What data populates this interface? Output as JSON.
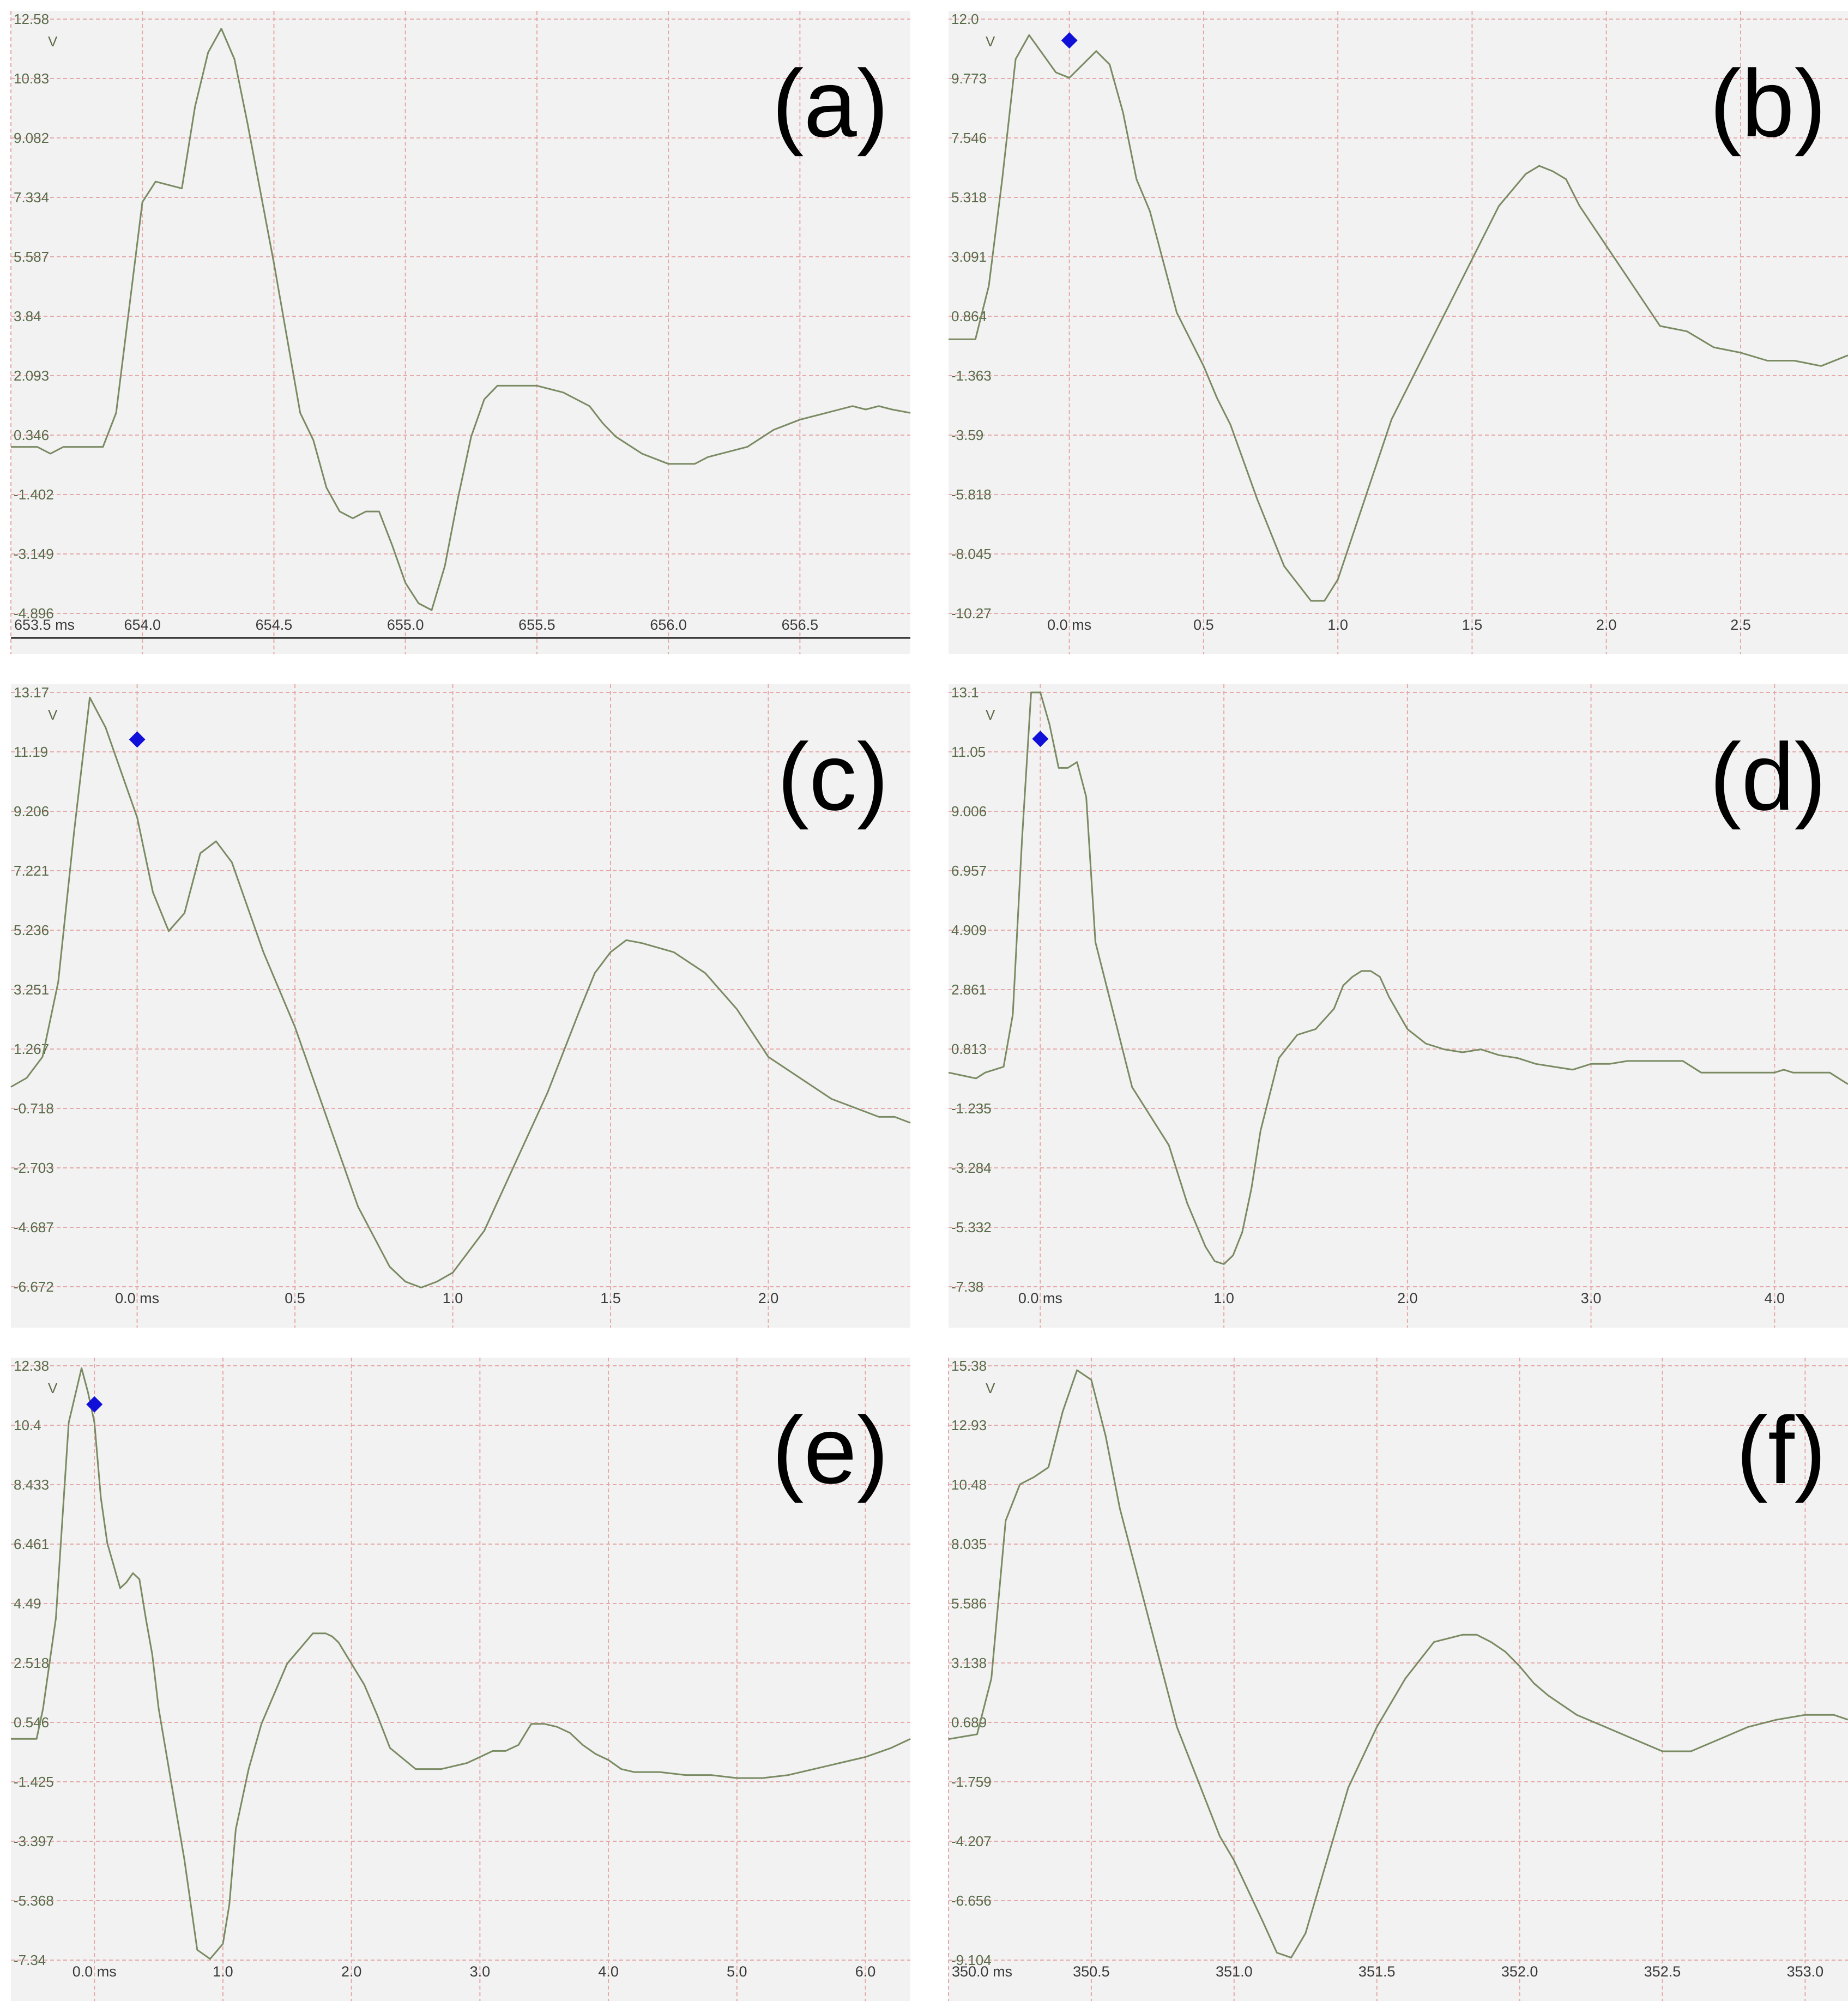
{
  "colors": {
    "plot_bg": "#f2f2f2",
    "grid": "#e6a8a8",
    "trace": "#7a8a62",
    "tick_text": "#5a6a48",
    "marker": "#1010d8"
  },
  "chart_data": [
    {
      "type": "line",
      "panel_label": "(a)",
      "unit_label": "V",
      "y_ticks": [
        "12.58",
        "10.83",
        "9.082",
        "7.334",
        "5.587",
        "3.84",
        "2.093",
        "0.346",
        "-1.402",
        "-3.149",
        "-4.896"
      ],
      "ylim": [
        -4.896,
        12.58
      ],
      "x_ticks": [
        {
          "value": 653.5,
          "label": "653.5 ms"
        },
        {
          "value": 654.0,
          "label": "654.0"
        },
        {
          "value": 654.5,
          "label": "654.5"
        },
        {
          "value": 655.0,
          "label": "655.0"
        },
        {
          "value": 655.5,
          "label": "655.5"
        },
        {
          "value": 656.0,
          "label": "656.0"
        },
        {
          "value": 656.5,
          "label": "656.5"
        }
      ],
      "xlim": [
        653.5,
        656.92
      ],
      "bottom_axis_line": true,
      "marker": null,
      "x": [
        653.5,
        653.6,
        653.65,
        653.7,
        653.8,
        653.85,
        653.9,
        654.0,
        654.05,
        654.15,
        654.2,
        654.25,
        654.3,
        654.35,
        654.4,
        654.5,
        654.6,
        654.65,
        654.7,
        654.75,
        654.8,
        654.85,
        654.9,
        654.95,
        655.0,
        655.05,
        655.1,
        655.15,
        655.2,
        655.25,
        655.3,
        655.35,
        655.4,
        655.5,
        655.6,
        655.7,
        655.75,
        655.8,
        655.9,
        656.0,
        656.1,
        656.15,
        656.2,
        656.3,
        656.4,
        656.5,
        656.6,
        656.7,
        656.75,
        656.8,
        656.85,
        656.92
      ],
      "y": [
        0.0,
        0.0,
        -0.2,
        0.0,
        0.0,
        0.0,
        1.0,
        7.2,
        7.8,
        7.6,
        10.0,
        11.6,
        12.3,
        11.4,
        9.5,
        5.4,
        1.0,
        0.2,
        -1.2,
        -1.9,
        -2.1,
        -1.9,
        -1.9,
        -2.9,
        -4.0,
        -4.6,
        -4.8,
        -3.5,
        -1.5,
        0.3,
        1.4,
        1.8,
        1.8,
        1.8,
        1.6,
        1.2,
        0.7,
        0.3,
        -0.2,
        -0.5,
        -0.5,
        -0.3,
        -0.2,
        0.0,
        0.5,
        0.8,
        1.0,
        1.2,
        1.1,
        1.2,
        1.1,
        1.0
      ]
    },
    {
      "type": "line",
      "panel_label": "(b)",
      "unit_label": "V",
      "y_ticks": [
        "12.0",
        "9.773",
        "7.546",
        "5.318",
        "3.091",
        "0.864",
        "-1.363",
        "-3.59",
        "-5.818",
        "-8.045",
        "-10.27"
      ],
      "ylim": [
        -10.27,
        12.0
      ],
      "x_ticks": [
        {
          "value": 0.0,
          "label": "0.0 ms"
        },
        {
          "value": 0.5,
          "label": "0.5"
        },
        {
          "value": 1.0,
          "label": "1.0"
        },
        {
          "value": 1.5,
          "label": "1.5"
        },
        {
          "value": 2.0,
          "label": "2.0"
        },
        {
          "value": 2.5,
          "label": "2.5"
        }
      ],
      "xlim": [
        -0.45,
        2.9
      ],
      "bottom_axis_line": false,
      "marker": {
        "x": 0.0,
        "y": 11.2
      },
      "x": [
        -0.45,
        -0.35,
        -0.3,
        -0.25,
        -0.2,
        -0.15,
        -0.1,
        -0.05,
        0.0,
        0.05,
        0.1,
        0.15,
        0.2,
        0.25,
        0.3,
        0.4,
        0.5,
        0.55,
        0.6,
        0.7,
        0.8,
        0.9,
        0.95,
        1.0,
        1.05,
        1.1,
        1.2,
        1.3,
        1.4,
        1.5,
        1.6,
        1.7,
        1.75,
        1.8,
        1.85,
        1.9,
        2.0,
        2.1,
        2.2,
        2.3,
        2.35,
        2.4,
        2.5,
        2.6,
        2.7,
        2.75,
        2.8,
        2.9
      ],
      "y": [
        0.0,
        0.0,
        2.0,
        6.0,
        10.5,
        11.4,
        10.7,
        10.0,
        9.8,
        10.3,
        10.8,
        10.3,
        8.5,
        6.0,
        4.8,
        1.0,
        -1.0,
        -2.2,
        -3.2,
        -6.0,
        -8.5,
        -9.8,
        -9.8,
        -9.0,
        -7.5,
        -6.0,
        -3.0,
        -1.0,
        1.0,
        3.0,
        5.0,
        6.2,
        6.5,
        6.3,
        6.0,
        5.0,
        3.5,
        2.0,
        0.5,
        0.3,
        0.0,
        -0.3,
        -0.5,
        -0.8,
        -0.8,
        -0.9,
        -1.0,
        -0.6
      ]
    },
    {
      "type": "line",
      "panel_label": "(c)",
      "unit_label": "V",
      "y_ticks": [
        "13.17",
        "11.19",
        "9.206",
        "7.221",
        "5.236",
        "3.251",
        "1.267",
        "-0.718",
        "-2.703",
        "-4.687",
        "-6.672"
      ],
      "ylim": [
        -6.672,
        13.17
      ],
      "x_ticks": [
        {
          "value": 0.0,
          "label": "0.0 ms"
        },
        {
          "value": 0.5,
          "label": "0.5"
        },
        {
          "value": 1.0,
          "label": "1.0"
        },
        {
          "value": 1.5,
          "label": "1.5"
        },
        {
          "value": 2.0,
          "label": "2.0"
        }
      ],
      "xlim": [
        -0.4,
        2.45
      ],
      "bottom_axis_line": false,
      "marker": {
        "x": 0.0,
        "y": 11.6
      },
      "x": [
        -0.4,
        -0.35,
        -0.3,
        -0.25,
        -0.2,
        -0.15,
        -0.1,
        -0.05,
        0.0,
        0.05,
        0.1,
        0.15,
        0.2,
        0.25,
        0.3,
        0.35,
        0.4,
        0.5,
        0.6,
        0.7,
        0.8,
        0.85,
        0.9,
        0.95,
        1.0,
        1.1,
        1.2,
        1.3,
        1.4,
        1.45,
        1.5,
        1.55,
        1.6,
        1.7,
        1.8,
        1.9,
        2.0,
        2.1,
        2.2,
        2.3,
        2.35,
        2.4,
        2.45
      ],
      "y": [
        0.0,
        0.3,
        1.0,
        3.5,
        8.5,
        13.0,
        12.0,
        10.5,
        9.0,
        6.5,
        5.2,
        5.8,
        7.8,
        8.2,
        7.5,
        6.0,
        4.5,
        2.0,
        -1.0,
        -4.0,
        -6.0,
        -6.5,
        -6.7,
        -6.5,
        -6.2,
        -4.8,
        -2.5,
        -0.2,
        2.5,
        3.8,
        4.5,
        4.9,
        4.8,
        4.5,
        3.8,
        2.6,
        1.0,
        0.3,
        -0.4,
        -0.8,
        -1.0,
        -1.0,
        -1.2
      ]
    },
    {
      "type": "line",
      "panel_label": "(d)",
      "unit_label": "V",
      "y_ticks": [
        "13.1",
        "11.05",
        "9.006",
        "6.957",
        "4.909",
        "2.861",
        "0.813",
        "-1.235",
        "-3.284",
        "-5.332",
        "-7.38"
      ],
      "ylim": [
        -7.38,
        13.1
      ],
      "x_ticks": [
        {
          "value": 0.0,
          "label": "0.0 ms"
        },
        {
          "value": 1.0,
          "label": "1.0"
        },
        {
          "value": 2.0,
          "label": "2.0"
        },
        {
          "value": 3.0,
          "label": "3.0"
        },
        {
          "value": 4.0,
          "label": "4.0"
        }
      ],
      "xlim": [
        -0.5,
        4.4
      ],
      "bottom_axis_line": false,
      "marker": {
        "x": 0.0,
        "y": 11.5
      },
      "x": [
        -0.5,
        -0.35,
        -0.3,
        -0.2,
        -0.15,
        -0.1,
        -0.05,
        0.0,
        0.05,
        0.1,
        0.15,
        0.2,
        0.25,
        0.3,
        0.4,
        0.5,
        0.6,
        0.7,
        0.8,
        0.9,
        0.95,
        1.0,
        1.05,
        1.1,
        1.15,
        1.2,
        1.3,
        1.4,
        1.45,
        1.5,
        1.6,
        1.65,
        1.7,
        1.75,
        1.8,
        1.85,
        1.9,
        2.0,
        2.1,
        2.2,
        2.3,
        2.4,
        2.5,
        2.6,
        2.7,
        2.8,
        2.9,
        3.0,
        3.1,
        3.2,
        3.3,
        3.5,
        3.6,
        3.8,
        4.0,
        4.05,
        4.1,
        4.3,
        4.4
      ],
      "y": [
        0.0,
        -0.2,
        0.0,
        0.2,
        2.0,
        8.0,
        13.1,
        13.1,
        12.0,
        10.5,
        10.5,
        10.7,
        9.5,
        4.5,
        2.0,
        -0.5,
        -1.5,
        -2.5,
        -4.5,
        -6.0,
        -6.5,
        -6.6,
        -6.3,
        -5.5,
        -4.0,
        -2.0,
        0.5,
        1.3,
        1.4,
        1.5,
        2.2,
        3.0,
        3.3,
        3.5,
        3.5,
        3.3,
        2.6,
        1.5,
        1.0,
        0.8,
        0.7,
        0.8,
        0.6,
        0.5,
        0.3,
        0.2,
        0.1,
        0.3,
        0.3,
        0.4,
        0.4,
        0.4,
        0.0,
        0.0,
        0.0,
        0.1,
        0.0,
        0.0,
        -0.4
      ]
    },
    {
      "type": "line",
      "panel_label": "(e)",
      "unit_label": "V",
      "y_ticks": [
        "12.38",
        "10.4",
        "8.433",
        "6.461",
        "4.49",
        "2.518",
        "0.546",
        "-1.425",
        "-3.397",
        "-5.368",
        "-7.34"
      ],
      "ylim": [
        -7.34,
        12.38
      ],
      "x_ticks": [
        {
          "value": 0.0,
          "label": "0.0 ms"
        },
        {
          "value": 1.0,
          "label": "1.0"
        },
        {
          "value": 2.0,
          "label": "2.0"
        },
        {
          "value": 3.0,
          "label": "3.0"
        },
        {
          "value": 4.0,
          "label": "4.0"
        },
        {
          "value": 5.0,
          "label": "5.0"
        },
        {
          "value": 6.0,
          "label": "6.0"
        }
      ],
      "xlim": [
        -0.65,
        6.35
      ],
      "bottom_axis_line": false,
      "marker": {
        "x": 0.0,
        "y": 11.1
      },
      "x": [
        -0.65,
        -0.45,
        -0.4,
        -0.3,
        -0.2,
        -0.1,
        -0.05,
        0.0,
        0.05,
        0.1,
        0.2,
        0.25,
        0.3,
        0.35,
        0.4,
        0.45,
        0.5,
        0.6,
        0.7,
        0.8,
        0.9,
        1.0,
        1.05,
        1.1,
        1.2,
        1.3,
        1.4,
        1.5,
        1.6,
        1.7,
        1.8,
        1.85,
        1.9,
        2.0,
        2.1,
        2.2,
        2.3,
        2.5,
        2.7,
        2.9,
        3.0,
        3.1,
        3.2,
        3.3,
        3.4,
        3.5,
        3.6,
        3.7,
        3.8,
        3.9,
        4.0,
        4.1,
        4.2,
        4.4,
        4.6,
        4.8,
        5.0,
        5.2,
        5.4,
        5.6,
        5.8,
        6.0,
        6.2,
        6.35
      ],
      "y": [
        0.0,
        0.0,
        1.0,
        4.0,
        10.5,
        12.3,
        11.5,
        10.5,
        8.0,
        6.5,
        5.0,
        5.2,
        5.5,
        5.3,
        4.0,
        2.8,
        1.0,
        -1.5,
        -4.0,
        -7.0,
        -7.3,
        -6.8,
        -5.5,
        -3.0,
        -1.0,
        0.5,
        1.5,
        2.5,
        3.0,
        3.5,
        3.5,
        3.4,
        3.2,
        2.5,
        1.8,
        0.8,
        -0.3,
        -1.0,
        -1.0,
        -0.8,
        -0.6,
        -0.4,
        -0.4,
        -0.2,
        0.5,
        0.5,
        0.4,
        0.2,
        -0.2,
        -0.5,
        -0.7,
        -1.0,
        -1.1,
        -1.1,
        -1.2,
        -1.2,
        -1.3,
        -1.3,
        -1.2,
        -1.0,
        -0.8,
        -0.6,
        -0.3,
        0.0
      ]
    },
    {
      "type": "line",
      "panel_label": "(f)",
      "unit_label": "V",
      "y_ticks": [
        "15.38",
        "12.93",
        "10.48",
        "8.035",
        "5.586",
        "3.138",
        "0.689",
        "-1.759",
        "-4.207",
        "-6.656",
        "-9.104"
      ],
      "ylim": [
        -9.104,
        15.38
      ],
      "x_ticks": [
        {
          "value": 350.0,
          "label": "350.0 ms"
        },
        {
          "value": 350.5,
          "label": "350.5"
        },
        {
          "value": 351.0,
          "label": "351.0"
        },
        {
          "value": 351.5,
          "label": "351.5"
        },
        {
          "value": 352.0,
          "label": "352.0"
        },
        {
          "value": 352.5,
          "label": "352.5"
        },
        {
          "value": 353.0,
          "label": "353.0"
        }
      ],
      "xlim": [
        350.0,
        353.15
      ],
      "bottom_axis_line": false,
      "marker": null,
      "x": [
        350.0,
        350.1,
        350.15,
        350.2,
        350.25,
        350.3,
        350.35,
        350.4,
        350.45,
        350.5,
        350.55,
        350.6,
        350.7,
        350.8,
        350.85,
        350.9,
        350.95,
        351.0,
        351.1,
        351.15,
        351.2,
        351.25,
        351.3,
        351.35,
        351.4,
        351.5,
        351.6,
        351.7,
        351.8,
        351.85,
        351.9,
        351.95,
        352.0,
        352.05,
        352.1,
        352.2,
        352.3,
        352.4,
        352.5,
        352.6,
        352.7,
        352.8,
        352.9,
        353.0,
        353.1,
        353.15
      ],
      "y": [
        0.0,
        0.2,
        2.5,
        9.0,
        10.5,
        10.8,
        11.2,
        13.5,
        15.2,
        14.8,
        12.5,
        9.5,
        5.0,
        0.5,
        -1.0,
        -2.5,
        -4.0,
        -5.0,
        -7.5,
        -8.8,
        -9.0,
        -8.0,
        -6.0,
        -4.0,
        -2.0,
        0.5,
        2.5,
        4.0,
        4.3,
        4.3,
        4.0,
        3.6,
        3.0,
        2.3,
        1.8,
        1.0,
        0.5,
        0.0,
        -0.5,
        -0.5,
        0.0,
        0.5,
        0.8,
        1.0,
        1.0,
        0.8
      ]
    }
  ]
}
